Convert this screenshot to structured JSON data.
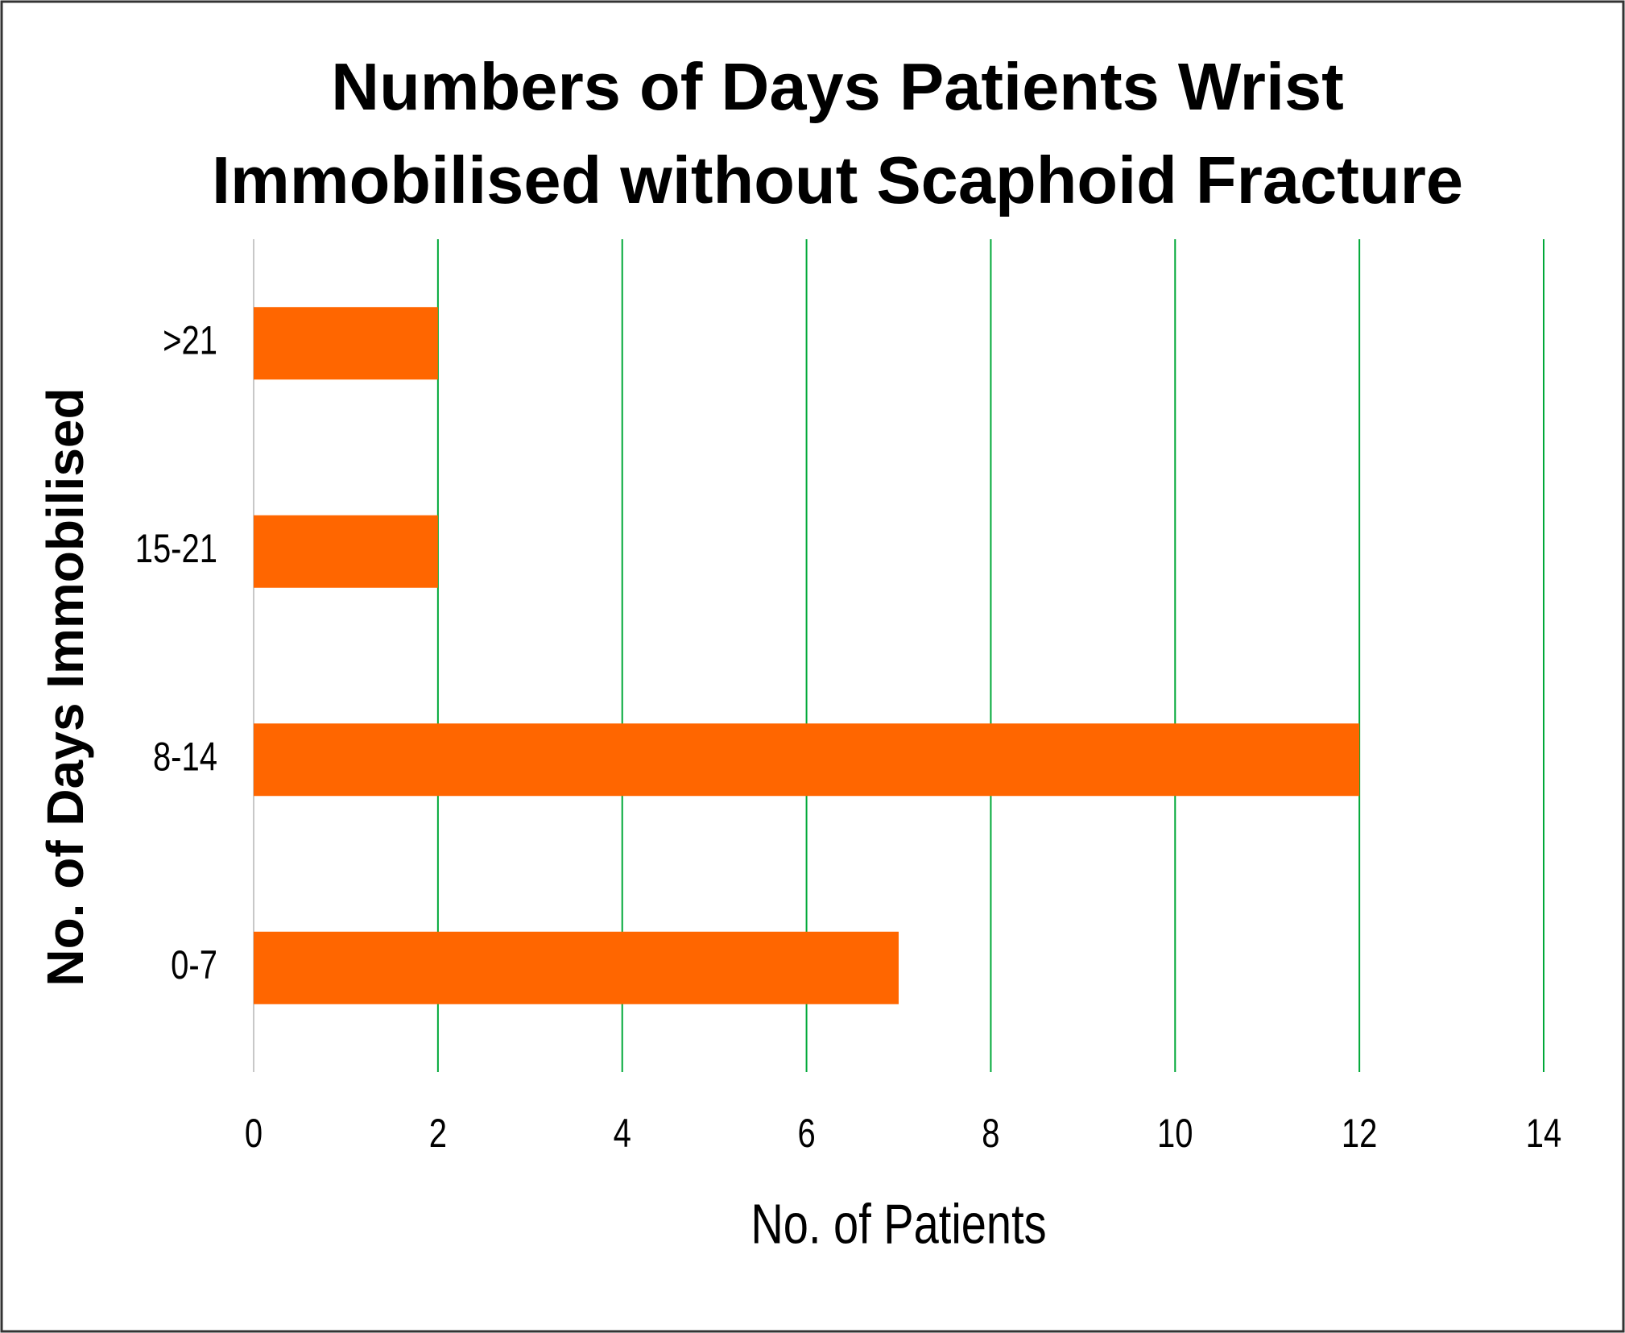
{
  "chart_data": {
    "type": "bar",
    "orientation": "horizontal",
    "title": [
      "Numbers of Days Patients Wrist",
      "Immobilised without Scaphoid Fracture"
    ],
    "x_label": "No. of Patients",
    "y_label": "No. of Days Immobilised",
    "categories": [
      "0-7",
      "8-14",
      "15-21",
      ">21"
    ],
    "values": [
      7,
      12,
      2,
      2
    ],
    "color": "#ff6600",
    "xlim": [
      0,
      14
    ],
    "xticks": [
      0,
      2,
      4,
      6,
      8,
      10,
      12,
      14
    ],
    "grid": true,
    "grid_color": "#00a838"
  }
}
